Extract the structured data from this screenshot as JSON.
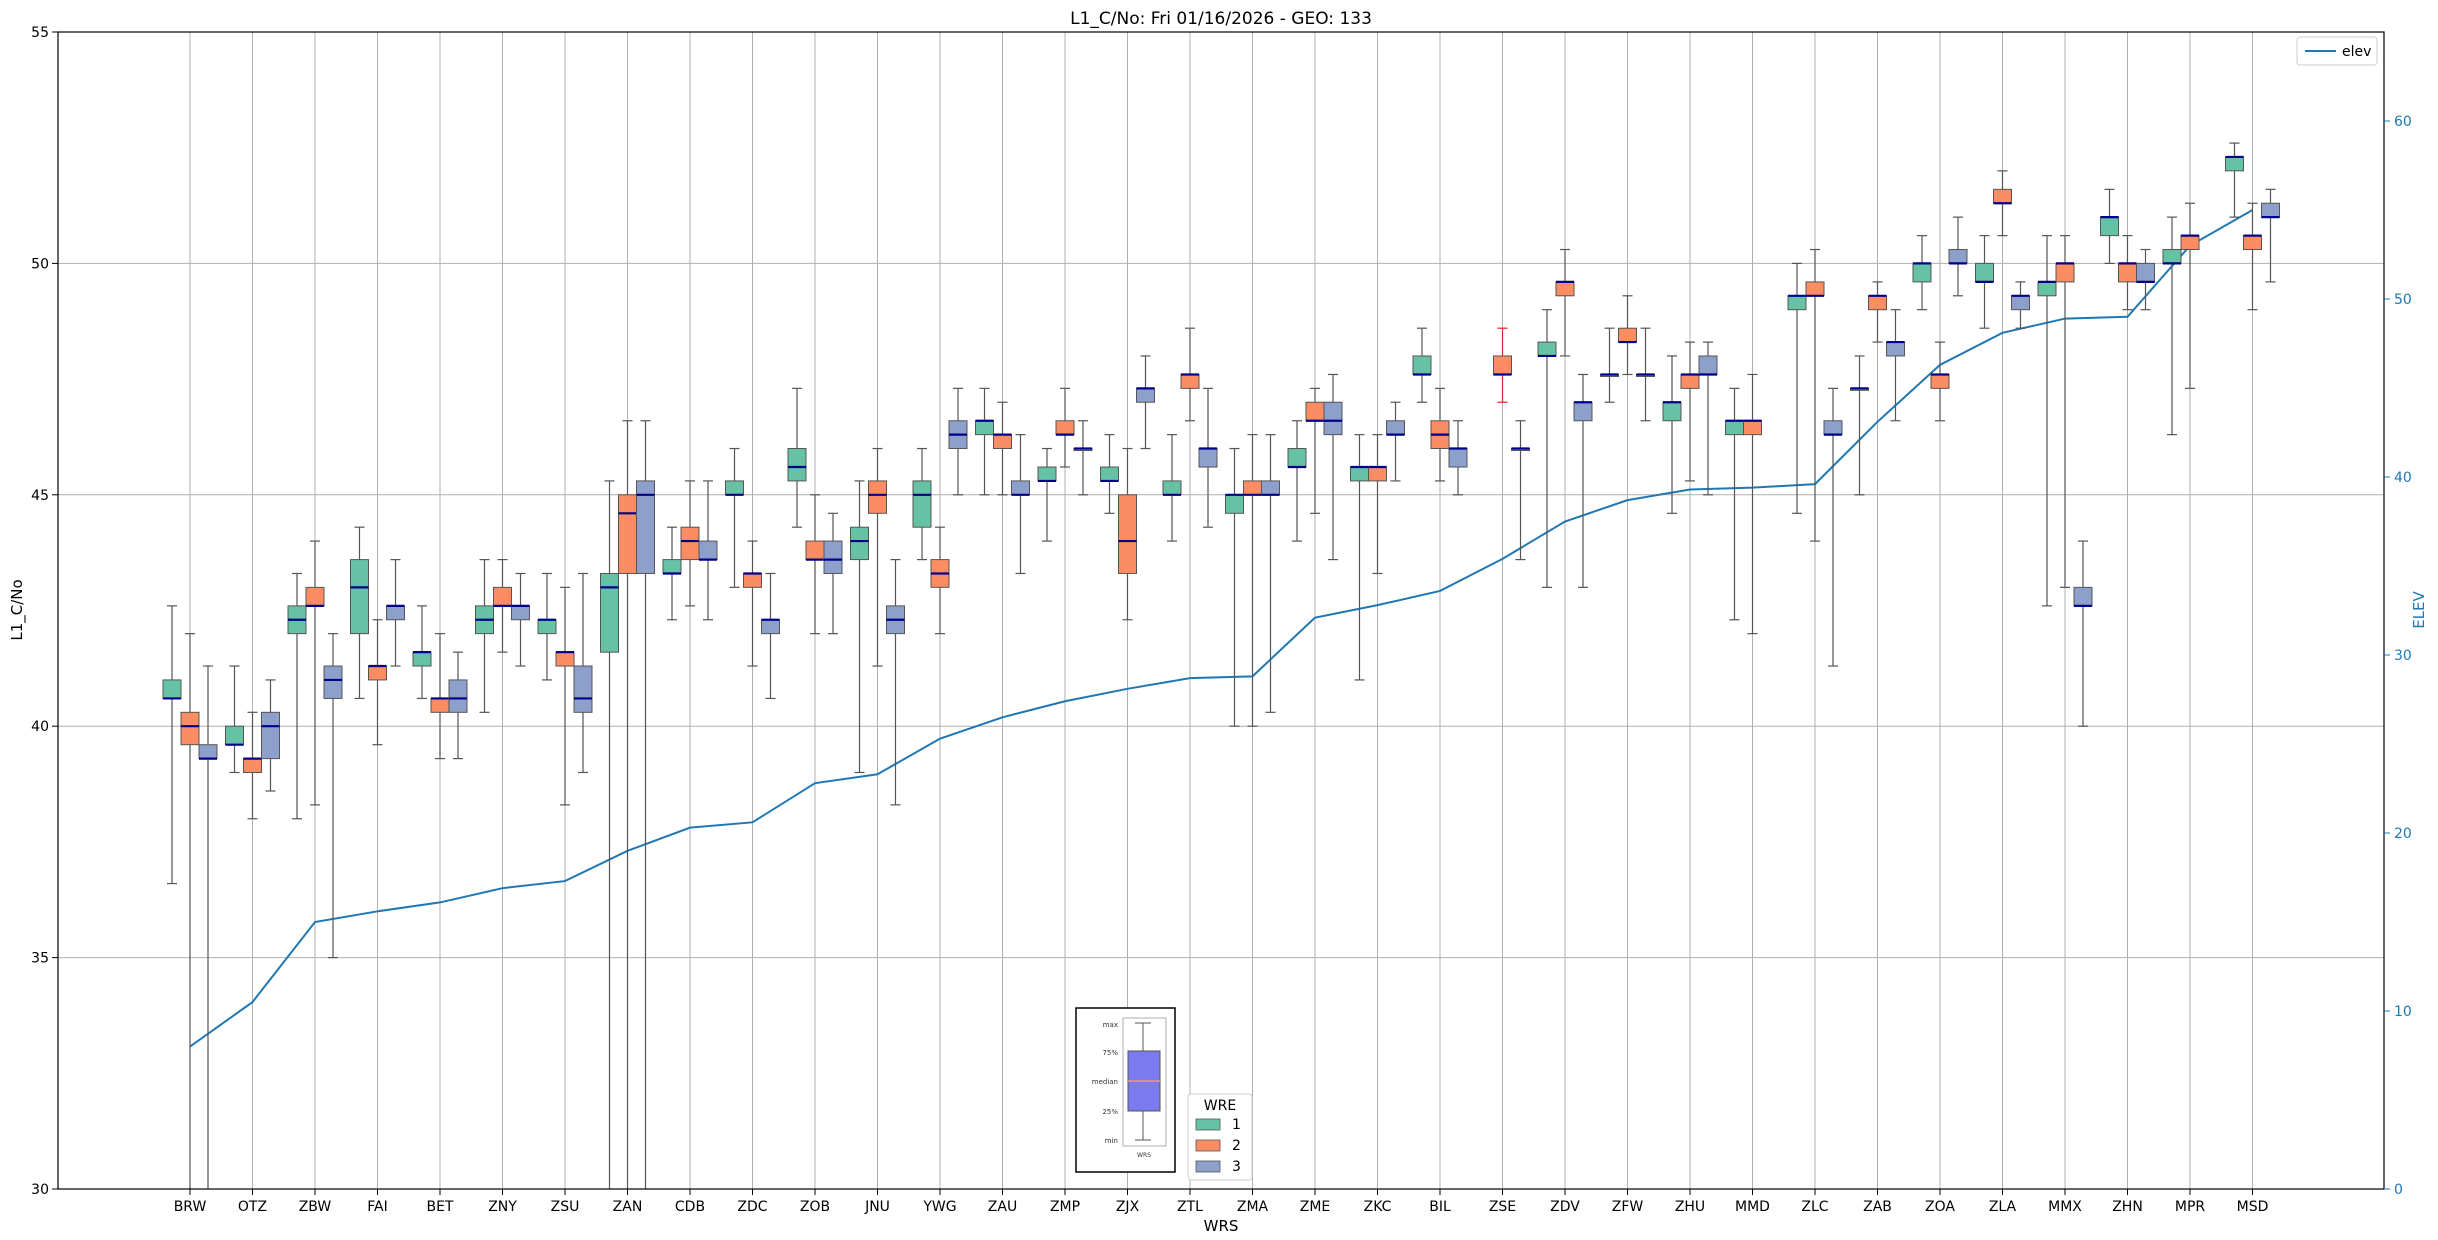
{
  "chart_data": {
    "type": "box",
    "title": "L1_C/No: Fri 01/16/2026 - GEO: 133",
    "xlabel": "WRS",
    "ylabel": "L1_C/No",
    "y2label": "ELEV",
    "ylim": [
      30,
      55
    ],
    "y2lim": [
      0,
      65
    ],
    "yticks": [
      30,
      35,
      40,
      45,
      50,
      55
    ],
    "y2ticks": [
      0,
      10,
      20,
      30,
      40,
      50,
      60
    ],
    "grid": true,
    "legend_position": "top-right",
    "elev_legend": "elev",
    "wre_legend": {
      "title": "WRE",
      "entries": [
        "1",
        "2",
        "3"
      ]
    },
    "key_labels": [
      "max",
      "75%",
      "median",
      "25%",
      "min",
      "WRS"
    ],
    "categories": [
      "BRW",
      "OTZ",
      "ZBW",
      "FAI",
      "BET",
      "ZNY",
      "ZSU",
      "ZAN",
      "CDB",
      "ZDC",
      "ZOB",
      "JNU",
      "YWG",
      "ZAU",
      "ZMP",
      "ZJX",
      "ZTL",
      "ZMA",
      "ZME",
      "ZKC",
      "BIL",
      "ZSE",
      "ZDV",
      "ZFW",
      "ZHU",
      "MMD",
      "ZLC",
      "ZAB",
      "ZOA",
      "ZLA",
      "MMX",
      "ZHN",
      "MPR",
      "MSD"
    ],
    "elev": [
      8,
      10.5,
      15,
      15.6,
      16.1,
      16.9,
      17.3,
      19,
      20.3,
      20.6,
      22.8,
      23.3,
      25.3,
      26.5,
      27.4,
      28.1,
      28.7,
      28.8,
      32.1,
      32.8,
      33.6,
      35.4,
      37.5,
      38.7,
      39.3,
      39.4,
      39.6,
      43.1,
      46.3,
      48.1,
      48.9,
      49,
      53,
      55
    ],
    "colors": {
      "wre1": "#66c2a5",
      "wre2": "#fc8d62",
      "wre3": "#8da0cb",
      "elev": "#1f77b4",
      "median": "#00008b"
    },
    "series": [
      {
        "name": "1",
        "offset": -1,
        "boxes": [
          {
            "cat": "BRW",
            "min": 36.6,
            "q1": 40.6,
            "med": 40.6,
            "q3": 41.0,
            "max": 42.6
          },
          {
            "cat": "OTZ",
            "min": 39.0,
            "q1": 39.6,
            "med": 39.6,
            "q3": 40.0,
            "max": 41.3
          },
          {
            "cat": "ZBW",
            "min": 38.0,
            "q1": 42.0,
            "med": 42.3,
            "q3": 42.6,
            "max": 43.3
          },
          {
            "cat": "FAI",
            "min": 40.6,
            "q1": 42.0,
            "med": 43.0,
            "q3": 43.6,
            "max": 44.3
          },
          {
            "cat": "BET",
            "min": 40.6,
            "q1": 41.3,
            "med": 41.6,
            "q3": 41.6,
            "max": 42.6
          },
          {
            "cat": "ZNY",
            "min": 40.3,
            "q1": 42.0,
            "med": 42.3,
            "q3": 42.6,
            "max": 43.6
          },
          {
            "cat": "ZSU",
            "min": 41.0,
            "q1": 42.0,
            "med": 42.3,
            "q3": 42.3,
            "max": 43.3
          },
          {
            "cat": "ZAN",
            "min": 30.0,
            "q1": 41.6,
            "med": 43.0,
            "q3": 43.3,
            "max": 45.3
          },
          {
            "cat": "CDB",
            "min": 42.3,
            "q1": 43.3,
            "med": 43.3,
            "q3": 43.6,
            "max": 44.3
          },
          {
            "cat": "ZDC",
            "min": 43.0,
            "q1": 45.0,
            "med": 45.0,
            "q3": 45.3,
            "max": 46.0
          },
          {
            "cat": "ZOB",
            "min": 44.3,
            "q1": 45.3,
            "med": 45.6,
            "q3": 46.0,
            "max": 47.3
          },
          {
            "cat": "JNU",
            "min": 39.0,
            "q1": 43.6,
            "med": 44.0,
            "q3": 44.3,
            "max": 45.3
          },
          {
            "cat": "YWG",
            "min": 43.6,
            "q1": 44.3,
            "med": 45.0,
            "q3": 45.3,
            "max": 46.0
          },
          {
            "cat": "ZAU",
            "min": 45.0,
            "q1": 46.3,
            "med": 46.6,
            "q3": 46.6,
            "max": 47.3
          },
          {
            "cat": "ZMP",
            "min": 44.0,
            "q1": 45.3,
            "med": 45.3,
            "q3": 45.6,
            "max": 46.0
          },
          {
            "cat": "ZJX",
            "min": 44.6,
            "q1": 45.3,
            "med": 45.3,
            "q3": 45.6,
            "max": 46.3
          },
          {
            "cat": "ZTL",
            "min": 44.0,
            "q1": 45.0,
            "med": 45.0,
            "q3": 45.3,
            "max": 46.3
          },
          {
            "cat": "ZMA",
            "min": 40.0,
            "q1": 44.6,
            "med": 45.0,
            "q3": 45.0,
            "max": 46.0
          },
          {
            "cat": "ZME",
            "min": 44.0,
            "q1": 45.6,
            "med": 45.6,
            "q3": 46.0,
            "max": 46.6
          },
          {
            "cat": "ZKC",
            "min": 41.0,
            "q1": 45.3,
            "med": 45.6,
            "q3": 45.6,
            "max": 46.3
          },
          {
            "cat": "BIL",
            "min": 47.0,
            "q1": 47.6,
            "med": 47.6,
            "q3": 48.0,
            "max": 48.6
          },
          {
            "cat": "ZDV",
            "min": 43.0,
            "q1": 48.0,
            "med": 48.0,
            "q3": 48.3,
            "max": 49.0
          },
          {
            "cat": "ZFW",
            "min": 47.0,
            "q1": 47.6,
            "med": 47.6,
            "q3": 47.6,
            "max": 48.6
          },
          {
            "cat": "ZHU",
            "min": 44.6,
            "q1": 46.6,
            "med": 47.0,
            "q3": 47.0,
            "max": 48.0
          },
          {
            "cat": "MMD",
            "min": 42.3,
            "q1": 46.3,
            "med": 46.6,
            "q3": 46.6,
            "max": 47.3
          },
          {
            "cat": "ZLC",
            "min": 44.6,
            "q1": 49.0,
            "med": 49.3,
            "q3": 49.3,
            "max": 50.0
          },
          {
            "cat": "ZAB",
            "min": 45.0,
            "q1": 47.3,
            "med": 47.3,
            "q3": 47.3,
            "max": 48.0
          },
          {
            "cat": "ZOA",
            "min": 49.0,
            "q1": 49.6,
            "med": 50.0,
            "q3": 50.0,
            "max": 50.6
          },
          {
            "cat": "ZLA",
            "min": 48.6,
            "q1": 49.6,
            "med": 49.6,
            "q3": 50.0,
            "max": 50.6
          },
          {
            "cat": "MMX",
            "min": 42.6,
            "q1": 49.3,
            "med": 49.6,
            "q3": 49.6,
            "max": 50.6
          },
          {
            "cat": "ZHN",
            "min": 50.0,
            "q1": 50.6,
            "med": 51.0,
            "q3": 51.0,
            "max": 51.6
          },
          {
            "cat": "MPR",
            "min": 46.3,
            "q1": 50.0,
            "med": 50.0,
            "q3": 50.3,
            "max": 51.0
          },
          {
            "cat": "MSD",
            "min": 51.0,
            "q1": 52.0,
            "med": 52.3,
            "q3": 52.3,
            "max": 52.6
          }
        ]
      },
      {
        "name": "2",
        "offset": 0,
        "boxes": [
          {
            "cat": "BRW",
            "min": 30.0,
            "q1": 39.6,
            "med": 40.0,
            "q3": 40.3,
            "max": 42.0
          },
          {
            "cat": "OTZ",
            "min": 38.0,
            "q1": 39.0,
            "med": 39.3,
            "q3": 39.3,
            "max": 40.3
          },
          {
            "cat": "ZBW",
            "min": 38.3,
            "q1": 42.6,
            "med": 42.6,
            "q3": 43.0,
            "max": 44.0
          },
          {
            "cat": "FAI",
            "min": 39.6,
            "q1": 41.0,
            "med": 41.3,
            "q3": 41.3,
            "max": 42.3
          },
          {
            "cat": "BET",
            "min": 39.3,
            "q1": 40.3,
            "med": 40.6,
            "q3": 40.6,
            "max": 42.0
          },
          {
            "cat": "ZNY",
            "min": 41.6,
            "q1": 42.6,
            "med": 42.6,
            "q3": 43.0,
            "max": 43.6
          },
          {
            "cat": "ZSU",
            "min": 38.3,
            "q1": 41.3,
            "med": 41.6,
            "q3": 41.6,
            "max": 43.0
          },
          {
            "cat": "ZAN",
            "min": 30.0,
            "q1": 43.3,
            "med": 44.6,
            "q3": 45.0,
            "max": 46.6
          },
          {
            "cat": "CDB",
            "min": 42.6,
            "q1": 43.6,
            "med": 44.0,
            "q3": 44.3,
            "max": 45.3
          },
          {
            "cat": "ZDC",
            "min": 41.3,
            "q1": 43.0,
            "med": 43.3,
            "q3": 43.3,
            "max": 44.0
          },
          {
            "cat": "ZOB",
            "min": 42.0,
            "q1": 43.6,
            "med": 43.6,
            "q3": 44.0,
            "max": 45.0
          },
          {
            "cat": "JNU",
            "min": 41.3,
            "q1": 44.6,
            "med": 45.0,
            "q3": 45.3,
            "max": 46.0
          },
          {
            "cat": "YWG",
            "min": 42.0,
            "q1": 43.0,
            "med": 43.3,
            "q3": 43.6,
            "max": 44.3
          },
          {
            "cat": "ZAU",
            "min": 45.0,
            "q1": 46.0,
            "med": 46.3,
            "q3": 46.3,
            "max": 47.0
          },
          {
            "cat": "ZMP",
            "min": 45.6,
            "q1": 46.3,
            "med": 46.3,
            "q3": 46.6,
            "max": 47.3
          },
          {
            "cat": "ZJX",
            "min": 42.3,
            "q1": 43.3,
            "med": 44.0,
            "q3": 45.0,
            "max": 46.0
          },
          {
            "cat": "ZTL",
            "min": 46.6,
            "q1": 47.3,
            "med": 47.6,
            "q3": 47.6,
            "max": 48.6
          },
          {
            "cat": "ZMA",
            "min": 40.0,
            "q1": 45.0,
            "med": 45.0,
            "q3": 45.3,
            "max": 46.3
          },
          {
            "cat": "ZME",
            "min": 44.6,
            "q1": 46.6,
            "med": 46.6,
            "q3": 47.0,
            "max": 47.3
          },
          {
            "cat": "ZKC",
            "min": 43.3,
            "q1": 45.3,
            "med": 45.6,
            "q3": 45.6,
            "max": 46.3
          },
          {
            "cat": "BIL",
            "min": 45.3,
            "q1": 46.0,
            "med": 46.3,
            "q3": 46.6,
            "max": 47.3
          },
          {
            "cat": "ZSE",
            "min": 47.0,
            "q1": 47.6,
            "med": 47.6,
            "q3": 48.0,
            "max": 48.6,
            "whisker": "#d62728"
          },
          {
            "cat": "ZDV",
            "min": 48.0,
            "q1": 49.3,
            "med": 49.6,
            "q3": 49.6,
            "max": 50.3
          },
          {
            "cat": "ZFW",
            "min": 47.6,
            "q1": 48.3,
            "med": 48.3,
            "q3": 48.6,
            "max": 49.3
          },
          {
            "cat": "ZHU",
            "min": 45.3,
            "q1": 47.3,
            "med": 47.6,
            "q3": 47.6,
            "max": 48.3
          },
          {
            "cat": "MMD",
            "min": 42.0,
            "q1": 46.3,
            "med": 46.6,
            "q3": 46.6,
            "max": 47.6
          },
          {
            "cat": "ZLC",
            "min": 44.0,
            "q1": 49.3,
            "med": 49.3,
            "q3": 49.6,
            "max": 50.3
          },
          {
            "cat": "ZAB",
            "min": 48.3,
            "q1": 49.0,
            "med": 49.3,
            "q3": 49.3,
            "max": 49.6
          },
          {
            "cat": "ZOA",
            "min": 46.6,
            "q1": 47.3,
            "med": 47.6,
            "q3": 47.6,
            "max": 48.3
          },
          {
            "cat": "ZLA",
            "min": 50.6,
            "q1": 51.3,
            "med": 51.3,
            "q3": 51.6,
            "max": 52.0
          },
          {
            "cat": "MMX",
            "min": 43.0,
            "q1": 49.6,
            "med": 50.0,
            "q3": 50.0,
            "max": 50.6
          },
          {
            "cat": "ZHN",
            "min": 49.0,
            "q1": 49.6,
            "med": 50.0,
            "q3": 50.0,
            "max": 50.6
          },
          {
            "cat": "MPR",
            "min": 47.3,
            "q1": 50.3,
            "med": 50.6,
            "q3": 50.6,
            "max": 51.3
          },
          {
            "cat": "MSD",
            "min": 49.0,
            "q1": 50.3,
            "med": 50.6,
            "q3": 50.6,
            "max": 51.3
          }
        ]
      },
      {
        "name": "3",
        "offset": 1,
        "boxes": [
          {
            "cat": "BRW",
            "min": 30.0,
            "q1": 39.3,
            "med": 39.3,
            "q3": 39.6,
            "max": 41.3
          },
          {
            "cat": "OTZ",
            "min": 38.6,
            "q1": 39.3,
            "med": 40.0,
            "q3": 40.3,
            "max": 41.0
          },
          {
            "cat": "ZBW",
            "min": 35.0,
            "q1": 40.6,
            "med": 41.0,
            "q3": 41.3,
            "max": 42.0
          },
          {
            "cat": "FAI",
            "min": 41.3,
            "q1": 42.3,
            "med": 42.6,
            "q3": 42.6,
            "max": 43.6
          },
          {
            "cat": "BET",
            "min": 39.3,
            "q1": 40.3,
            "med": 40.6,
            "q3": 41.0,
            "max": 41.6
          },
          {
            "cat": "ZNY",
            "min": 41.3,
            "q1": 42.3,
            "med": 42.6,
            "q3": 42.6,
            "max": 43.3
          },
          {
            "cat": "ZSU",
            "min": 39.0,
            "q1": 40.3,
            "med": 40.6,
            "q3": 41.3,
            "max": 43.3
          },
          {
            "cat": "ZAN",
            "min": 30.0,
            "q1": 43.3,
            "med": 45.0,
            "q3": 45.3,
            "max": 46.6
          },
          {
            "cat": "CDB",
            "min": 42.3,
            "q1": 43.6,
            "med": 43.6,
            "q3": 44.0,
            "max": 45.3
          },
          {
            "cat": "ZDC",
            "min": 40.6,
            "q1": 42.0,
            "med": 42.3,
            "q3": 42.3,
            "max": 43.3
          },
          {
            "cat": "ZOB",
            "min": 42.0,
            "q1": 43.3,
            "med": 43.6,
            "q3": 44.0,
            "max": 44.6
          },
          {
            "cat": "JNU",
            "min": 38.3,
            "q1": 42.0,
            "med": 42.3,
            "q3": 42.6,
            "max": 43.6
          },
          {
            "cat": "YWG",
            "min": 45.0,
            "q1": 46.0,
            "med": 46.3,
            "q3": 46.6,
            "max": 47.3
          },
          {
            "cat": "ZAU",
            "min": 43.3,
            "q1": 45.0,
            "med": 45.0,
            "q3": 45.3,
            "max": 46.3
          },
          {
            "cat": "ZMP",
            "min": 45.0,
            "q1": 46.0,
            "med": 46.0,
            "q3": 46.0,
            "max": 46.6
          },
          {
            "cat": "ZJX",
            "min": 46.0,
            "q1": 47.0,
            "med": 47.3,
            "q3": 47.3,
            "max": 48.0
          },
          {
            "cat": "ZTL",
            "min": 44.3,
            "q1": 45.6,
            "med": 46.0,
            "q3": 46.0,
            "max": 47.3
          },
          {
            "cat": "ZMA",
            "min": 40.3,
            "q1": 45.0,
            "med": 45.0,
            "q3": 45.3,
            "max": 46.3
          },
          {
            "cat": "ZME",
            "min": 43.6,
            "q1": 46.3,
            "med": 46.6,
            "q3": 47.0,
            "max": 47.6
          },
          {
            "cat": "ZKC",
            "min": 45.3,
            "q1": 46.3,
            "med": 46.3,
            "q3": 46.6,
            "max": 47.0
          },
          {
            "cat": "BIL",
            "min": 45.0,
            "q1": 45.6,
            "med": 46.0,
            "q3": 46.0,
            "max": 46.6
          },
          {
            "cat": "ZSE",
            "min": 43.6,
            "q1": 46.0,
            "med": 46.0,
            "q3": 46.0,
            "max": 46.6
          },
          {
            "cat": "ZDV",
            "min": 43.0,
            "q1": 46.6,
            "med": 47.0,
            "q3": 47.0,
            "max": 47.6
          },
          {
            "cat": "ZFW",
            "min": 46.6,
            "q1": 47.6,
            "med": 47.6,
            "q3": 47.6,
            "max": 48.6
          },
          {
            "cat": "ZHU",
            "min": 45.0,
            "q1": 47.6,
            "med": 47.6,
            "q3": 48.0,
            "max": 48.3
          },
          {
            "cat": "ZLC",
            "min": 41.3,
            "q1": 46.3,
            "med": 46.3,
            "q3": 46.6,
            "max": 47.3
          },
          {
            "cat": "ZAB",
            "min": 46.6,
            "q1": 48.0,
            "med": 48.3,
            "q3": 48.3,
            "max": 49.0
          },
          {
            "cat": "ZOA",
            "min": 49.3,
            "q1": 50.0,
            "med": 50.0,
            "q3": 50.3,
            "max": 51.0
          },
          {
            "cat": "ZLA",
            "min": 48.6,
            "q1": 49.0,
            "med": 49.3,
            "q3": 49.3,
            "max": 49.6
          },
          {
            "cat": "MMX",
            "min": 40.0,
            "q1": 42.6,
            "med": 42.6,
            "q3": 43.0,
            "max": 44.0
          },
          {
            "cat": "ZHN",
            "min": 49.0,
            "q1": 49.6,
            "med": 49.6,
            "q3": 50.0,
            "max": 50.3
          },
          {
            "cat": "MSD",
            "min": 49.6,
            "q1": 51.0,
            "med": 51.0,
            "q3": 51.3,
            "max": 51.6
          }
        ]
      }
    ]
  }
}
